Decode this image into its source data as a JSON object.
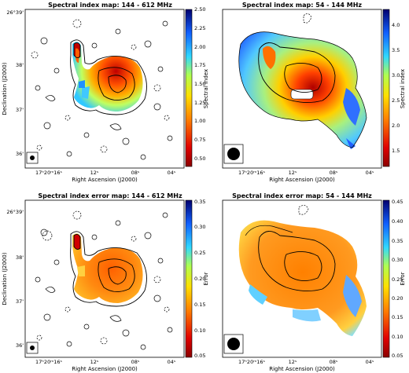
{
  "panels": [
    {
      "title": "Spectral index map: 144 - 612 MHz",
      "x_label": "Right Ascension (J2000)",
      "y_label": "Declination (J2000)",
      "x_ticks": [
        "17ʰ20ᵐ16ˢ",
        "12ˢ",
        "08ˢ",
        "04ˢ"
      ],
      "y_ticks": [
        "26°39'",
        "38'",
        "37'",
        "36'"
      ],
      "colorbar_label": "Spectral index",
      "colorbar_ticks": [
        "2.50",
        "2.25",
        "2.00",
        "1.75",
        "1.50",
        "1.25",
        "1.00",
        "0.75",
        "0.50"
      ]
    },
    {
      "title": "Spectral index map: 54 - 144 MHz",
      "x_label": "Right Ascension (J2000)",
      "y_label": "",
      "x_ticks": [
        "17ʰ20ᵐ16ˢ",
        "12ˢ",
        "08ˢ",
        "04ˢ"
      ],
      "y_ticks": [],
      "colorbar_label": "Spectral index",
      "colorbar_ticks": [
        "4.0",
        "3.5",
        "3.0",
        "2.5",
        "2.0",
        "1.5"
      ]
    },
    {
      "title": "Spectral index error map: 144 - 612 MHz",
      "x_label": "Right Ascension (J2000)",
      "y_label": "Declination (J2000)",
      "x_ticks": [
        "17ʰ20ᵐ16ˢ",
        "12ˢ",
        "08ˢ",
        "04ˢ"
      ],
      "y_ticks": [
        "26°39'",
        "38'",
        "37'",
        "36'"
      ],
      "colorbar_label": "Error",
      "colorbar_ticks": [
        "0.35",
        "0.30",
        "0.25",
        "0.20",
        "0.15",
        "0.10",
        "0.05"
      ]
    },
    {
      "title": "Spectral index error map: 54 - 144 MHz",
      "x_label": "Right Ascension (J2000)",
      "y_label": "",
      "x_ticks": [
        "17ʰ20ᵐ16ˢ",
        "12ˢ",
        "08ˢ",
        "04ˢ"
      ],
      "y_ticks": [],
      "colorbar_label": "Error",
      "colorbar_ticks": [
        "0.45",
        "0.40",
        "0.35",
        "0.30",
        "0.25",
        "0.20",
        "0.15",
        "0.10",
        "0.05"
      ]
    }
  ],
  "chart_data": [
    {
      "type": "heatmap",
      "title": "Spectral index map: 144 - 612 MHz",
      "colorbar_range": [
        0.4,
        2.5
      ],
      "colormap": "jet_r"
    },
    {
      "type": "heatmap",
      "title": "Spectral index map: 54 - 144 MHz",
      "colorbar_range": [
        1.2,
        4.3
      ],
      "colormap": "jet_r"
    },
    {
      "type": "heatmap",
      "title": "Spectral index error map: 144 - 612 MHz",
      "colorbar_range": [
        0.05,
        0.35
      ],
      "colormap": "jet_r"
    },
    {
      "type": "heatmap",
      "title": "Spectral index error map: 54 - 144 MHz",
      "colorbar_range": [
        0.05,
        0.45
      ],
      "colormap": "jet_r"
    }
  ],
  "colors": {
    "red": "#c80000",
    "orange": "#ff8c00",
    "yellow": "#ffe000",
    "cyan": "#40c0ff",
    "blue": "#0018c0"
  }
}
